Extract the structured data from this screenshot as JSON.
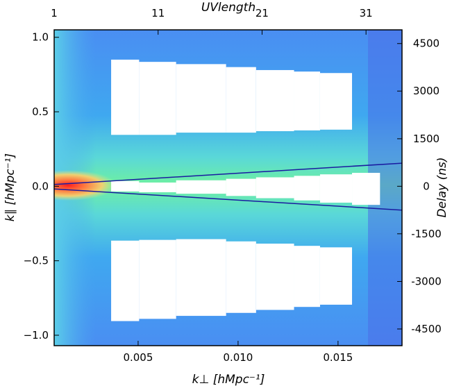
{
  "chart_data": {
    "type": "heatmap",
    "title": "",
    "xlabel": "k⊥ [hMpc⁻¹]",
    "ylabel": "k∥ [hMpc⁻¹]",
    "top_xlabel": "UVlength",
    "right_ylabel": "Delay (ns)",
    "xlim": [
      0.0008,
      0.0182
    ],
    "ylim": [
      -1.07,
      1.05
    ],
    "x_ticks": [
      0.005,
      0.01,
      0.015
    ],
    "x_tick_labels": [
      "0.005",
      "0.010",
      "0.015"
    ],
    "y_ticks": [
      1.0,
      0.5,
      0.0,
      -0.5,
      -1.0
    ],
    "y_tick_labels": [
      "1.0",
      "0.5",
      "0.0",
      "−0.5",
      "−1.0"
    ],
    "top_ticks": [
      0.0008,
      0.006,
      0.0112,
      0.0164
    ],
    "top_tick_labels": [
      "1",
      "11",
      "21",
      "31"
    ],
    "right_ticks": [
      0.958,
      0.639,
      0.319,
      0.0,
      -0.319,
      -0.639,
      -0.958
    ],
    "right_tick_labels": [
      "4500",
      "3000",
      "1500",
      "0",
      "-1500",
      "-3000",
      "-4500"
    ],
    "wedge_lines": [
      {
        "x": [
          0.0008,
          0.0182
        ],
        "y": [
          0.012,
          0.155
        ]
      },
      {
        "x": [
          0.0008,
          0.0182
        ],
        "y": [
          -0.018,
          -0.16
        ]
      }
    ],
    "masked_steps": [
      {
        "x0": 0.00365,
        "x1": 0.00505,
        "top_hi": 0.85,
        "top_lo": 0.345,
        "bot_hi": -0.365,
        "bot_lo": -0.905,
        "mid_hi": 0.035,
        "mid_lo": -0.035
      },
      {
        "x0": 0.00505,
        "x1": 0.0069,
        "top_hi": 0.835,
        "top_lo": 0.345,
        "bot_hi": -0.36,
        "bot_lo": -0.89,
        "mid_hi": 0.025,
        "mid_lo": -0.04
      },
      {
        "x0": 0.0069,
        "x1": 0.0094,
        "top_hi": 0.82,
        "top_lo": 0.36,
        "bot_hi": -0.355,
        "bot_lo": -0.87,
        "mid_hi": 0.04,
        "mid_lo": -0.05
      },
      {
        "x0": 0.0094,
        "x1": 0.0109,
        "top_hi": 0.8,
        "top_lo": 0.36,
        "bot_hi": -0.37,
        "bot_lo": -0.85,
        "mid_hi": 0.05,
        "mid_lo": -0.065
      },
      {
        "x0": 0.0109,
        "x1": 0.0128,
        "top_hi": 0.78,
        "top_lo": 0.37,
        "bot_hi": -0.385,
        "bot_lo": -0.83,
        "mid_hi": 0.06,
        "mid_lo": -0.08
      },
      {
        "x0": 0.0128,
        "x1": 0.0141,
        "top_hi": 0.77,
        "top_lo": 0.375,
        "bot_hi": -0.4,
        "bot_lo": -0.81,
        "mid_hi": 0.07,
        "mid_lo": -0.095
      },
      {
        "x0": 0.0141,
        "x1": 0.0157,
        "top_hi": 0.76,
        "top_lo": 0.38,
        "bot_hi": -0.41,
        "bot_lo": -0.795,
        "mid_hi": 0.08,
        "mid_lo": -0.11
      },
      {
        "x0": 0.0157,
        "x1": 0.0171,
        "mid_hi": 0.09,
        "mid_lo": -0.125
      }
    ],
    "colormap": "jet",
    "grid": false
  }
}
